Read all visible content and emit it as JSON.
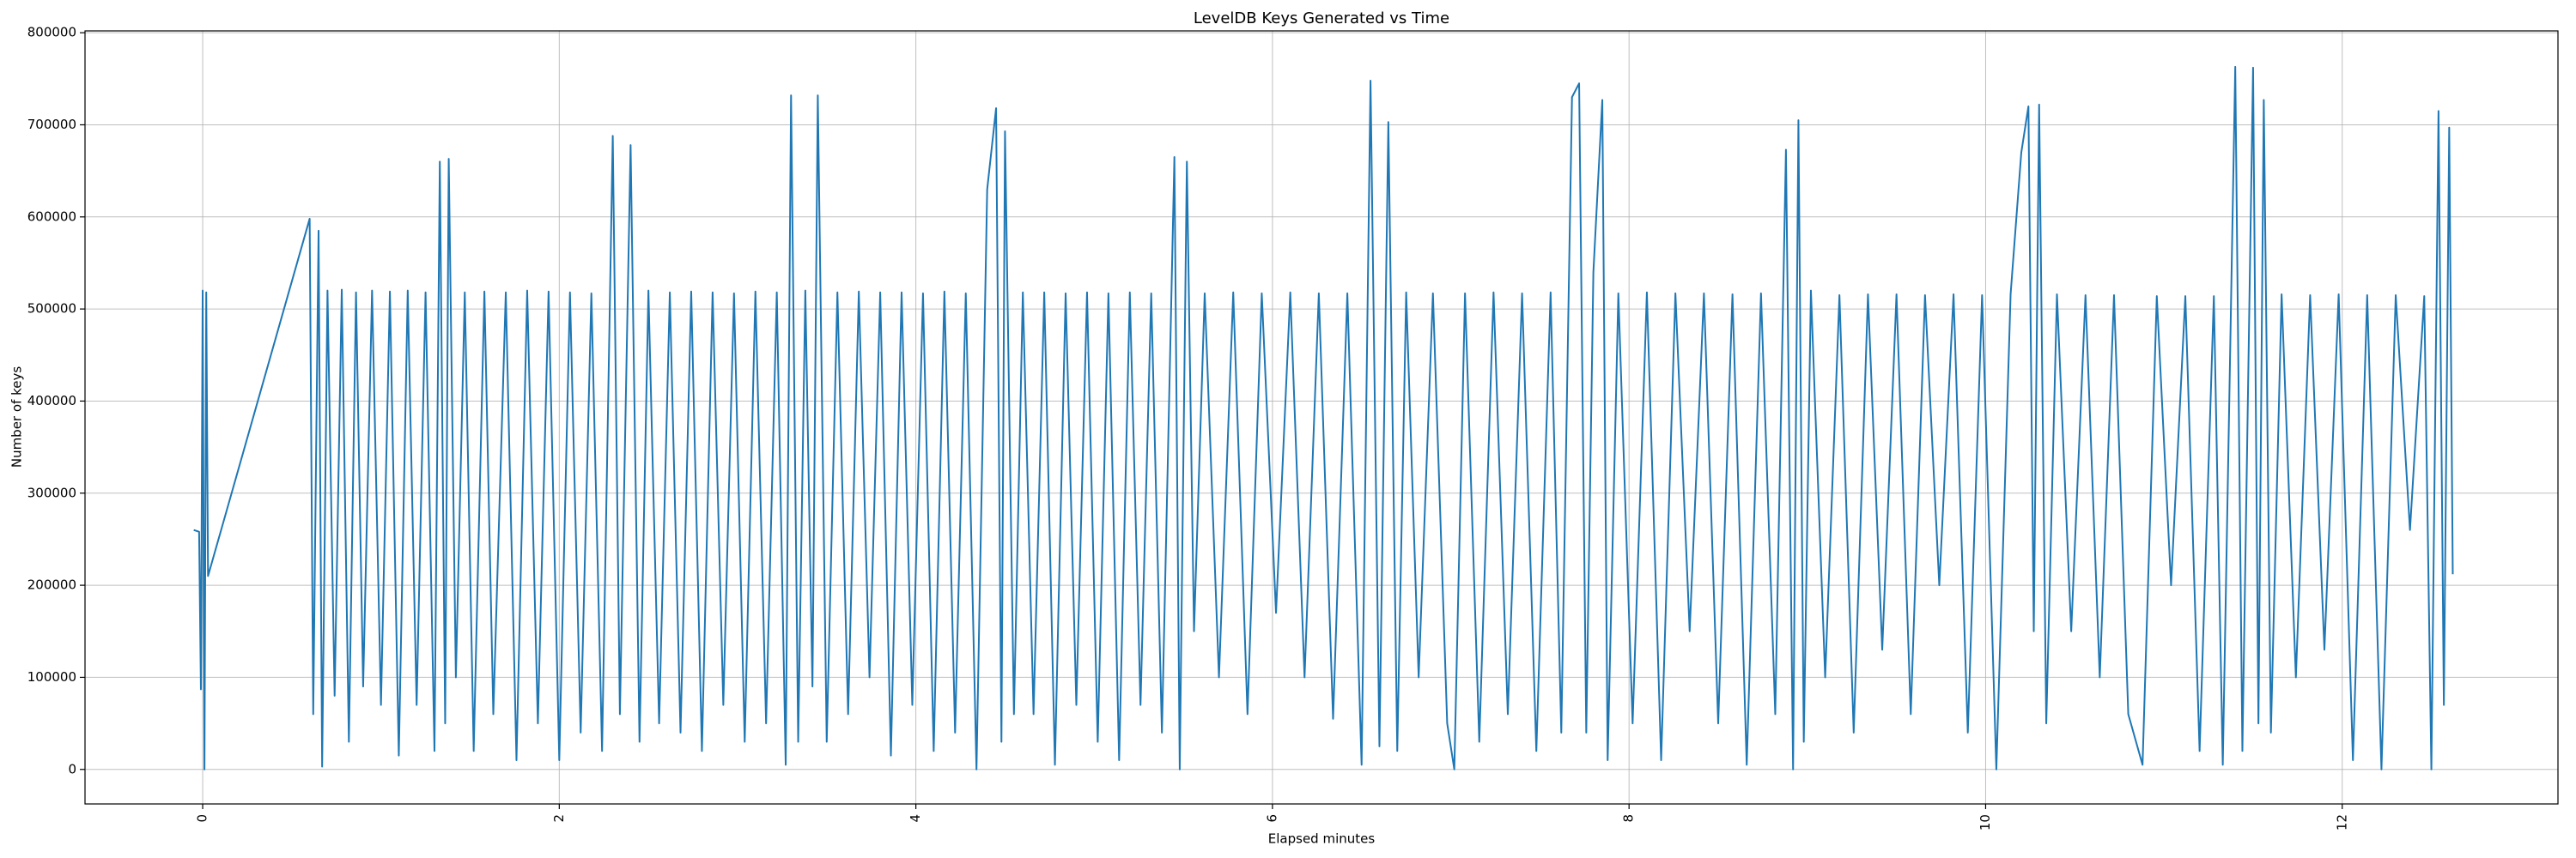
{
  "chart_data": {
    "type": "line",
    "title": "LevelDB Keys Generated vs Time",
    "x_label": "Elapsed minutes",
    "y_label": "Number of keys",
    "xlim": [
      -0.66,
      13.21
    ],
    "ylim": [
      -37500,
      802000
    ],
    "xticks": [
      0,
      2,
      4,
      6,
      8,
      10,
      12
    ],
    "yticks": [
      0,
      100000,
      200000,
      300000,
      400000,
      500000,
      600000,
      700000,
      800000
    ],
    "grid": true,
    "series": [
      {
        "name": "Keys",
        "color": "#1f77b4",
        "x": [
          -0.05,
          -0.02,
          -0.01,
          0,
          0.01,
          0.02,
          0.03,
          0.6,
          0.62,
          0.65,
          0.67,
          0.7,
          0.74,
          0.78,
          0.82,
          0.86,
          0.9,
          0.95,
          1.0,
          1.05,
          1.1,
          1.15,
          1.2,
          1.25,
          1.3,
          1.33,
          1.36,
          1.38,
          1.42,
          1.47,
          1.52,
          1.58,
          1.63,
          1.7,
          1.76,
          1.82,
          1.88,
          1.94,
          2.0,
          2.06,
          2.12,
          2.18,
          2.24,
          2.3,
          2.34,
          2.4,
          2.45,
          2.5,
          2.56,
          2.62,
          2.68,
          2.74,
          2.8,
          2.86,
          2.92,
          2.98,
          3.04,
          3.1,
          3.16,
          3.22,
          3.27,
          3.3,
          3.34,
          3.38,
          3.42,
          3.45,
          3.5,
          3.56,
          3.62,
          3.68,
          3.74,
          3.8,
          3.86,
          3.92,
          3.98,
          4.04,
          4.1,
          4.16,
          4.22,
          4.28,
          4.34,
          4.4,
          4.45,
          4.48,
          4.5,
          4.55,
          4.6,
          4.66,
          4.72,
          4.78,
          4.84,
          4.9,
          4.96,
          5.02,
          5.08,
          5.14,
          5.2,
          5.26,
          5.32,
          5.38,
          5.45,
          5.48,
          5.52,
          5.56,
          5.62,
          5.7,
          5.78,
          5.86,
          5.94,
          6.02,
          6.1,
          6.18,
          6.26,
          6.34,
          6.42,
          6.5,
          6.55,
          6.6,
          6.65,
          6.7,
          6.75,
          6.82,
          6.9,
          6.98,
          7.02,
          7.08,
          7.16,
          7.24,
          7.32,
          7.4,
          7.48,
          7.56,
          7.62,
          7.68,
          7.72,
          7.76,
          7.8,
          7.85,
          7.88,
          7.94,
          8.02,
          8.1,
          8.18,
          8.26,
          8.34,
          8.42,
          8.5,
          8.58,
          8.66,
          8.74,
          8.82,
          8.88,
          8.92,
          8.95,
          8.98,
          9.02,
          9.1,
          9.18,
          9.26,
          9.34,
          9.42,
          9.5,
          9.58,
          9.66,
          9.74,
          9.82,
          9.9,
          9.98,
          10.06,
          10.14,
          10.2,
          10.24,
          10.27,
          10.3,
          10.34,
          10.4,
          10.48,
          10.56,
          10.64,
          10.72,
          10.8,
          10.88,
          10.96,
          11.04,
          11.12,
          11.2,
          11.28,
          11.33,
          11.4,
          11.44,
          11.5,
          11.53,
          11.56,
          11.6,
          11.66,
          11.74,
          11.82,
          11.9,
          11.98,
          12.06,
          12.14,
          12.22,
          12.3,
          12.38,
          12.46,
          12.5,
          12.54,
          12.57,
          12.6,
          12.62
        ],
        "values": [
          260000,
          258000,
          87000,
          520000,
          0,
          518000,
          210000,
          598000,
          60000,
          585000,
          3000,
          520000,
          80000,
          521000,
          30000,
          518000,
          90000,
          520000,
          70000,
          519000,
          15000,
          520000,
          70000,
          518000,
          20000,
          660000,
          50000,
          663000,
          100000,
          518000,
          20000,
          519000,
          60000,
          518000,
          10000,
          520000,
          50000,
          519000,
          10000,
          518000,
          40000,
          517000,
          20000,
          688000,
          60000,
          678000,
          30000,
          520000,
          50000,
          518000,
          40000,
          519000,
          20000,
          518000,
          70000,
          517000,
          30000,
          519000,
          50000,
          518000,
          5000,
          732000,
          30000,
          520000,
          90000,
          732000,
          30000,
          518000,
          60000,
          519000,
          100000,
          518000,
          15000,
          518000,
          70000,
          517000,
          20000,
          519000,
          40000,
          517000,
          0,
          630000,
          718000,
          30000,
          693000,
          60000,
          518000,
          60000,
          518000,
          5000,
          517000,
          70000,
          518000,
          30000,
          517000,
          10000,
          518000,
          70000,
          517000,
          40000,
          665000,
          0,
          660000,
          150000,
          517000,
          100000,
          518000,
          60000,
          517000,
          170000,
          518000,
          100000,
          517000,
          55000,
          517000,
          5000,
          748000,
          25000,
          703000,
          20000,
          518000,
          100000,
          517000,
          50000,
          0,
          517000,
          30000,
          518000,
          60000,
          517000,
          20000,
          518000,
          40000,
          730000,
          745000,
          40000,
          540000,
          727000,
          10000,
          517000,
          50000,
          518000,
          10000,
          517000,
          150000,
          517000,
          50000,
          516000,
          5000,
          517000,
          60000,
          673000,
          0,
          705000,
          30000,
          520000,
          100000,
          515000,
          40000,
          516000,
          130000,
          516000,
          60000,
          515000,
          200000,
          516000,
          40000,
          515000,
          0,
          516000,
          670000,
          720000,
          150000,
          722000,
          50000,
          516000,
          150000,
          515000,
          100000,
          515000,
          60000,
          5000,
          514000,
          200000,
          514000,
          20000,
          514000,
          5000,
          763000,
          20000,
          762000,
          50000,
          727000,
          40000,
          516000,
          100000,
          515000,
          130000,
          516000,
          10000,
          515000,
          0,
          515000,
          260000,
          514000,
          0,
          715000,
          70000,
          697000,
          212000
        ]
      }
    ]
  }
}
